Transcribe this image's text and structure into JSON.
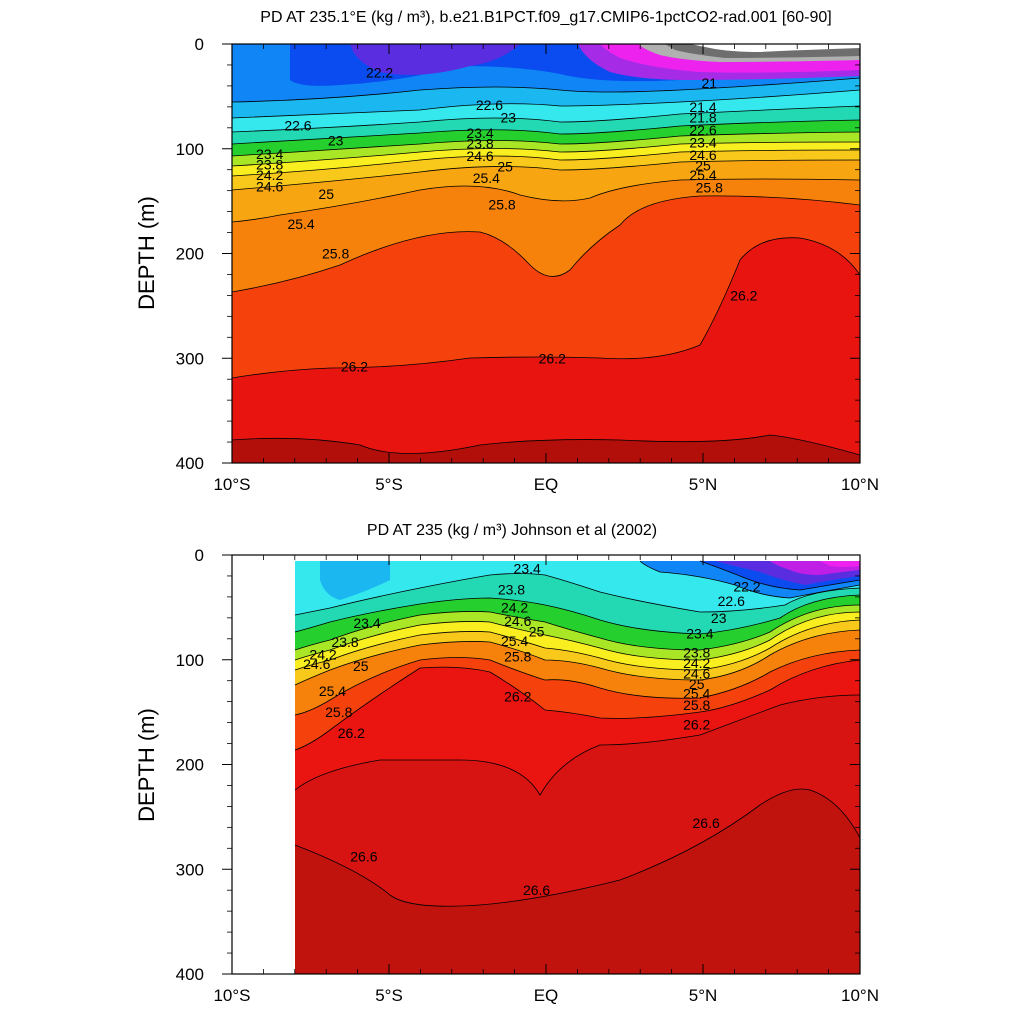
{
  "chart_data": [
    {
      "type": "heatmap",
      "title": "PD AT 235.1°E (kg / m³), b.e21.B1PCT.f09_g17.CMIP6-1pctCO2-rad.001 [60-90]",
      "xlabel": "",
      "ylabel": "DEPTH (m)",
      "x_ticks": [
        "10°S",
        "5°S",
        "EQ",
        "5°N",
        "10°N"
      ],
      "y_ticks": [
        "0",
        "100",
        "200",
        "300",
        "400"
      ],
      "xlim": [
        -10,
        10
      ],
      "ylim": [
        0,
        400
      ],
      "y_reversed": true,
      "contour_levels": [
        21.0,
        21.4,
        21.8,
        22.2,
        22.6,
        23.0,
        23.4,
        23.8,
        24.2,
        24.6,
        25.0,
        25.4,
        25.8,
        26.2,
        26.6
      ],
      "contour_labels": [
        {
          "text": "22.2",
          "lat": -5.3,
          "depth": 27
        },
        {
          "text": "22.6",
          "lat": -7.9,
          "depth": 78
        },
        {
          "text": "23",
          "lat": -6.7,
          "depth": 92
        },
        {
          "text": "23.4",
          "lat": -8.8,
          "depth": 105
        },
        {
          "text": "23.8",
          "lat": -8.8,
          "depth": 115
        },
        {
          "text": "24.2",
          "lat": -8.8,
          "depth": 125
        },
        {
          "text": "24.6",
          "lat": -8.8,
          "depth": 136
        },
        {
          "text": "25",
          "lat": -7.0,
          "depth": 143
        },
        {
          "text": "25.4",
          "lat": -7.8,
          "depth": 172
        },
        {
          "text": "25.8",
          "lat": -6.7,
          "depth": 200
        },
        {
          "text": "26.2",
          "lat": -6.1,
          "depth": 308
        },
        {
          "text": "22.6",
          "lat": -1.8,
          "depth": 58
        },
        {
          "text": "23",
          "lat": -1.2,
          "depth": 70
        },
        {
          "text": "23.4",
          "lat": -2.1,
          "depth": 85
        },
        {
          "text": "23.8",
          "lat": -2.1,
          "depth": 95
        },
        {
          "text": "24.6",
          "lat": -2.1,
          "depth": 107
        },
        {
          "text": "25",
          "lat": -1.3,
          "depth": 117
        },
        {
          "text": "25.4",
          "lat": -1.9,
          "depth": 128
        },
        {
          "text": "25.8",
          "lat": -1.4,
          "depth": 153
        },
        {
          "text": "26.2",
          "lat": 0.2,
          "depth": 300
        },
        {
          "text": "21",
          "lat": 5.2,
          "depth": 37
        },
        {
          "text": "21.4",
          "lat": 5.0,
          "depth": 60
        },
        {
          "text": "21.8",
          "lat": 5.0,
          "depth": 70
        },
        {
          "text": "22.6",
          "lat": 5.0,
          "depth": 82
        },
        {
          "text": "23.4",
          "lat": 5.0,
          "depth": 94
        },
        {
          "text": "24.6",
          "lat": 5.0,
          "depth": 106
        },
        {
          "text": "25",
          "lat": 5.0,
          "depth": 116
        },
        {
          "text": "25.4",
          "lat": 5.0,
          "depth": 125
        },
        {
          "text": "25.8",
          "lat": 5.2,
          "depth": 137
        },
        {
          "text": "26.2",
          "lat": 6.3,
          "depth": 240
        }
      ]
    },
    {
      "type": "heatmap",
      "title": "PD AT 235 (kg / m³) Johnson et al (2002)",
      "xlabel": "",
      "ylabel": "DEPTH (m)",
      "x_ticks": [
        "10°S",
        "5°S",
        "EQ",
        "5°N",
        "10°N"
      ],
      "y_ticks": [
        "0",
        "100",
        "200",
        "300",
        "400"
      ],
      "xlim": [
        -10,
        10
      ],
      "ylim": [
        0,
        400
      ],
      "y_reversed": true,
      "data_start_lat": -8,
      "contour_levels": [
        22.2,
        22.6,
        23.0,
        23.4,
        23.8,
        24.2,
        24.6,
        25.0,
        25.4,
        25.8,
        26.2,
        26.6
      ],
      "contour_labels": [
        {
          "text": "23.4",
          "lat": -0.6,
          "depth": 13
        },
        {
          "text": "23.8",
          "lat": -1.1,
          "depth": 33
        },
        {
          "text": "24.2",
          "lat": -1.0,
          "depth": 50
        },
        {
          "text": "24.6",
          "lat": -0.9,
          "depth": 63
        },
        {
          "text": "25",
          "lat": -0.3,
          "depth": 73
        },
        {
          "text": "25.4",
          "lat": -1.0,
          "depth": 82
        },
        {
          "text": "25.8",
          "lat": -0.9,
          "depth": 97
        },
        {
          "text": "26.2",
          "lat": -0.9,
          "depth": 135
        },
        {
          "text": "23.4",
          "lat": -5.7,
          "depth": 65
        },
        {
          "text": "23.8",
          "lat": -6.4,
          "depth": 83
        },
        {
          "text": "24.2",
          "lat": -7.1,
          "depth": 95
        },
        {
          "text": "24.6",
          "lat": -7.3,
          "depth": 104
        },
        {
          "text": "25",
          "lat": -5.9,
          "depth": 106
        },
        {
          "text": "25.4",
          "lat": -6.8,
          "depth": 130
        },
        {
          "text": "25.8",
          "lat": -6.6,
          "depth": 150
        },
        {
          "text": "26.2",
          "lat": -6.2,
          "depth": 170
        },
        {
          "text": "26.6",
          "lat": -5.8,
          "depth": 288
        },
        {
          "text": "26.6",
          "lat": -0.3,
          "depth": 320
        },
        {
          "text": "22.2",
          "lat": 6.4,
          "depth": 30
        },
        {
          "text": "22.6",
          "lat": 5.9,
          "depth": 44
        },
        {
          "text": "23",
          "lat": 5.5,
          "depth": 60
        },
        {
          "text": "23.4",
          "lat": 4.9,
          "depth": 75
        },
        {
          "text": "23.8",
          "lat": 4.8,
          "depth": 93
        },
        {
          "text": "24.2",
          "lat": 4.8,
          "depth": 103
        },
        {
          "text": "24.6",
          "lat": 4.8,
          "depth": 113
        },
        {
          "text": "25",
          "lat": 4.8,
          "depth": 123
        },
        {
          "text": "25.4",
          "lat": 4.8,
          "depth": 132
        },
        {
          "text": "25.8",
          "lat": 4.8,
          "depth": 143
        },
        {
          "text": "26.2",
          "lat": 4.8,
          "depth": 162
        },
        {
          "text": "26.6",
          "lat": 5.1,
          "depth": 256
        }
      ]
    }
  ]
}
